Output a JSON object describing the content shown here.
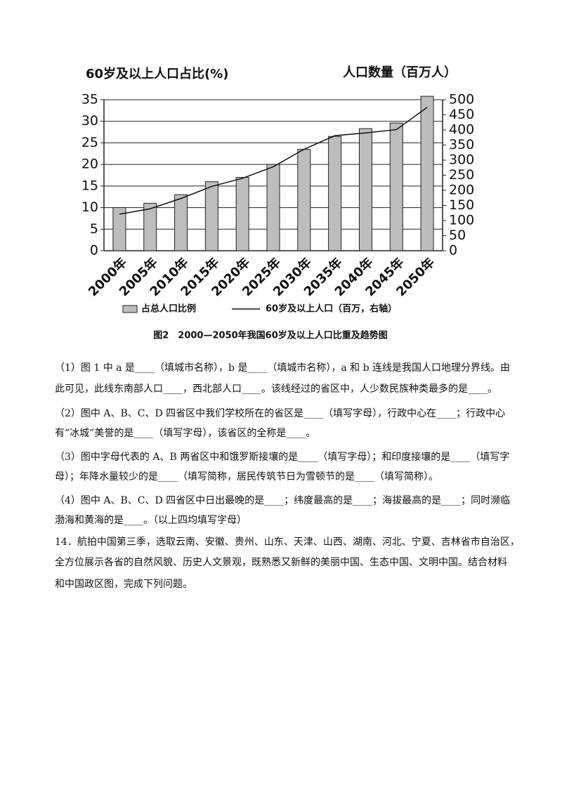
{
  "chart_data": {
    "type": "bar",
    "y_title": "60岁及以上人口占比(%)",
    "y2_title": "人口数量（百万人）",
    "caption": "图2　2000—2050年我国60岁及以上人口比重及趋势图",
    "categories": [
      "2000年",
      "2005年",
      "2010年",
      "2015年",
      "2020年",
      "2025年",
      "2030年",
      "2035年",
      "2040年",
      "2045年",
      "2050年"
    ],
    "series": [
      {
        "name": "占总人口比例",
        "type": "bar",
        "color": "#bdbdbd",
        "values": [
          10,
          11,
          13,
          16,
          17,
          20,
          23.5,
          26.5,
          28.3,
          29.6,
          35.8
        ]
      },
      {
        "name": "60岁及以上人口（百万，右轴）",
        "type": "line",
        "axis": "y2",
        "color": "#111111",
        "values": [
          121,
          139,
          173,
          213,
          240,
          278,
          336,
          381,
          390,
          401,
          475
        ]
      }
    ],
    "ylim": [
      0,
      35
    ],
    "yticks": [
      0,
      5,
      10,
      15,
      20,
      25,
      30,
      35
    ],
    "y2lim": [
      0,
      500
    ],
    "y2ticks": [
      0,
      50,
      100,
      150,
      200,
      250,
      300,
      350,
      400,
      450,
      500
    ],
    "grid": true
  },
  "questions": [
    {
      "lines": [
        "（1）图 1 中 a 是____（填城市名称），b 是____（填城市名称），a 和 b 连线是我国人口地理分界线。由",
        "此可见，此线东南部人口____，西北部人口____。该线经过的省区中，人少数民族种类最多的是____。"
      ]
    },
    {
      "lines": [
        "（2）图中 A、B、C、D 四省区中我们学校所在的省区是____（填写字母），行政中心在____；行政中心",
        "有“冰城”美誉的是____（填写字母），该省区的全称是____。"
      ]
    },
    {
      "lines": [
        "（3）图中字母代表的 A、B 两省区中和饿罗斯接壤的是____（填写字母）；和印度接壤的是____（填写字",
        "母）；年降水量较少的是____（填写简称，居民传筑节日为雪顿节的是____（填写简称）。"
      ]
    },
    {
      "lines": [
        "（4）图中 A、B、C、D 四省区中日出最晚的是____；纬度最高的是____；海拔最高的是____；同时濒临",
        "渤海和黄海的是____。（以上四均填写字母）"
      ]
    },
    {
      "lines": [
        "14．航拍中国第三季，选取云南、安徽、贵州、山东、天津、山西、湖南、河北、宁夏、吉林省市自治区，",
        "全方位展示各省的自然风貌、历史人文景观，既熟悉又新鲜的美丽中国、生态中国、文明中国。结合材料",
        "和中国政区图，完成下列问题。"
      ]
    }
  ]
}
